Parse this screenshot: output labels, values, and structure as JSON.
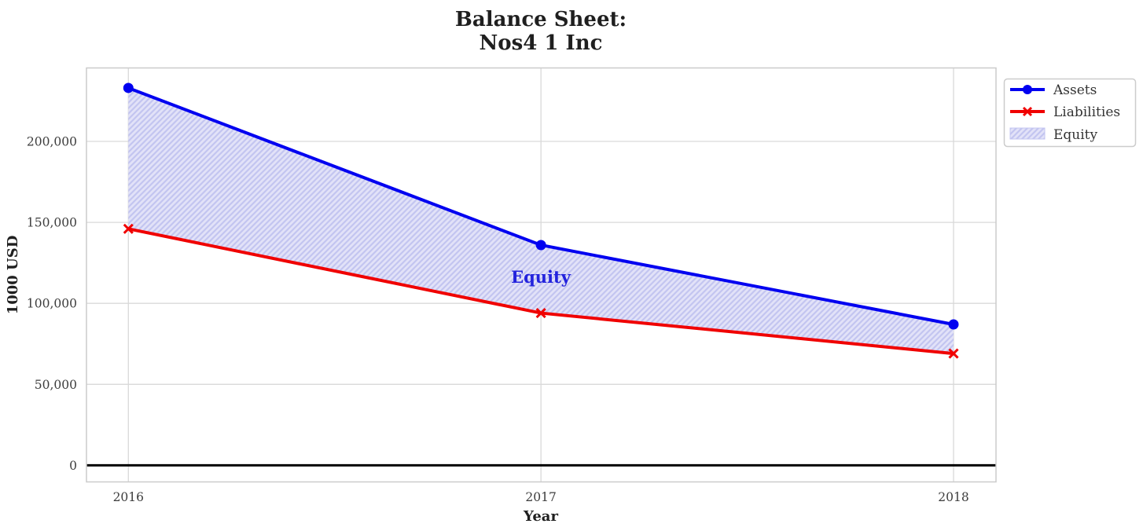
{
  "chart_data": {
    "type": "line",
    "title": "Balance Sheet:\nNos4 1 Inc",
    "title_lines": [
      "Balance Sheet:",
      "Nos4 1 Inc"
    ],
    "xlabel": "Year",
    "ylabel": "1000 USD",
    "units": "1000 USD",
    "x": [
      2016,
      2017,
      2018
    ],
    "x_tick_labels": [
      "2016",
      "2017",
      "2018"
    ],
    "y_tick_values": [
      0,
      50000,
      100000,
      150000,
      200000
    ],
    "y_tick_labels": [
      "0",
      "50,000",
      "100,000",
      "150,000",
      "200,000"
    ],
    "ylim": [
      -10000,
      245000
    ],
    "grid": true,
    "series": [
      {
        "name": "Assets",
        "marker": "circle",
        "color": "#0000f0",
        "values": [
          233000,
          136000,
          87000
        ]
      },
      {
        "name": "Liabilities",
        "marker": "x",
        "color": "#f00000",
        "values": [
          146000,
          94000,
          69000
        ]
      }
    ],
    "fill_between": {
      "label": "Equity",
      "upper": "Assets",
      "lower": "Liabilities",
      "values": [
        87000,
        42000,
        18000
      ],
      "fill_color": "#e2e2f8",
      "hatch_color": "#c3c5f0",
      "hatch": "///"
    },
    "annotation": {
      "text": "Equity",
      "x": 2017,
      "y": 116000,
      "color": "#2323dd"
    },
    "zero_line": {
      "y": 0,
      "color": "#000000"
    },
    "legend": {
      "position": "upper-right-outside",
      "entries": [
        "Assets",
        "Liabilities",
        "Equity"
      ]
    }
  }
}
